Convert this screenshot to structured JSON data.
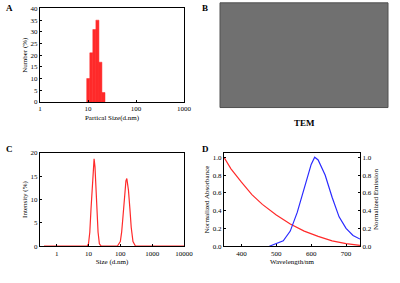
{
  "chart_data": [
    {
      "type": "histogram",
      "label": "A",
      "xlabel": "Partical Size(d.nm)",
      "ylabel": "Number (%)",
      "log": "x",
      "color": "#ff2a2a",
      "bins": [
        9.4,
        10.9,
        12.6,
        14.6,
        16.9,
        19.5,
        22.6
      ],
      "values": [
        10,
        21,
        31,
        35,
        17,
        4
      ],
      "xlim": [
        1,
        1000
      ],
      "xticks": [
        1,
        10,
        100,
        1000
      ],
      "ylim": [
        0,
        40
      ],
      "yticks": [
        0,
        5,
        10,
        15,
        20,
        25,
        30,
        35,
        40
      ]
    },
    {
      "type": "image",
      "label": "B",
      "caption": "TEM"
    },
    {
      "type": "line",
      "label": "C",
      "xlabel": "Size (d.nm)",
      "ylabel": "Intensity (%)",
      "log": "x",
      "color": "#ff2a2a",
      "x": [
        0.4,
        1,
        5,
        9,
        10,
        11,
        12,
        13,
        14,
        15,
        16,
        17,
        18,
        20,
        22,
        25,
        30,
        40,
        60,
        80,
        100,
        110,
        120,
        130,
        140,
        150,
        160,
        170,
        180,
        200,
        220,
        250,
        300,
        400,
        1000,
        10000
      ],
      "values": [
        0,
        0,
        0,
        0,
        0.5,
        3,
        8,
        13,
        17,
        18.7,
        17,
        13,
        8,
        3,
        0.5,
        0,
        0,
        0,
        0,
        0,
        1,
        3,
        6,
        9,
        12,
        14,
        14.5,
        13.5,
        12,
        8,
        4,
        1,
        0,
        0,
        0,
        0
      ],
      "xlim": [
        0.3,
        10000
      ],
      "xticks": [
        1,
        10,
        100,
        1000,
        10000
      ],
      "ylim": [
        0,
        20
      ],
      "yticks": [
        0,
        5,
        10,
        15,
        20
      ]
    },
    {
      "type": "line",
      "label": "D",
      "xlabel": "Wavelength/nm",
      "ylabel": "Normalized Absorbance",
      "y2label": "Normalized Emission",
      "series": [
        {
          "name": "Absorbance",
          "color": "#ff2a2a",
          "x": [
            350,
            370,
            400,
            430,
            460,
            500,
            540,
            580,
            620,
            660,
            700,
            740
          ],
          "values": [
            1.0,
            0.87,
            0.72,
            0.58,
            0.47,
            0.35,
            0.25,
            0.17,
            0.11,
            0.06,
            0.03,
            0.01
          ]
        },
        {
          "name": "Emission",
          "color": "#2a2aff",
          "axis": "y2",
          "x": [
            480,
            520,
            540,
            560,
            580,
            600,
            610,
            620,
            640,
            660,
            680,
            700,
            720,
            740
          ],
          "values": [
            0,
            0.06,
            0.17,
            0.38,
            0.65,
            0.92,
            1.0,
            0.97,
            0.8,
            0.55,
            0.33,
            0.2,
            0.12,
            0.08
          ]
        }
      ],
      "xlim": [
        350,
        740
      ],
      "xticks": [
        400,
        500,
        600,
        700
      ],
      "ylim": [
        0,
        1.05
      ],
      "yticks": [
        {
          "value": 0,
          "label": "0.0"
        },
        0.2,
        0.4,
        0.6,
        0.8,
        {
          "value": 1,
          "label": "1.0"
        }
      ],
      "y2lim": [
        0,
        1.05
      ],
      "y2ticks": [
        {
          "value": 0,
          "label": "0.0"
        },
        0.2,
        0.4,
        0.6,
        0.8,
        {
          "value": 1,
          "label": "1.0"
        }
      ]
    }
  ]
}
